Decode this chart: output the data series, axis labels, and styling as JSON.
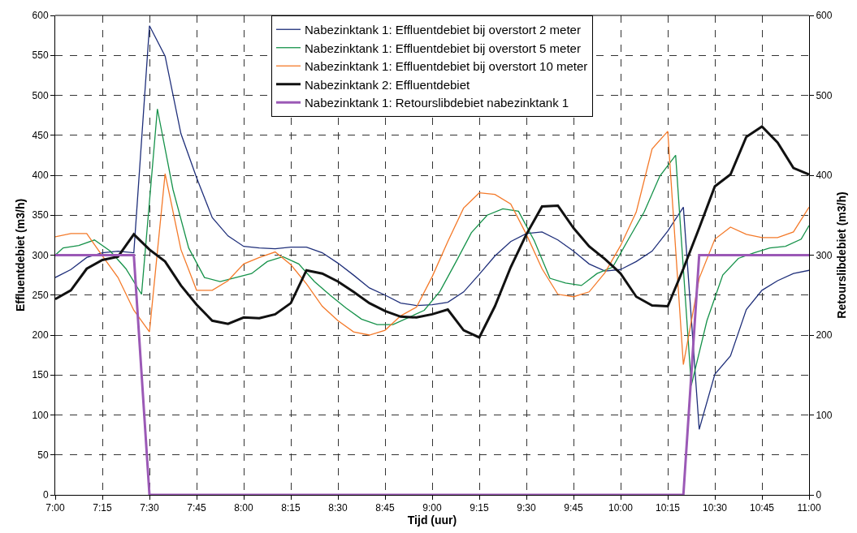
{
  "chart_data": {
    "type": "line",
    "xlabel": "Tijd (uur)",
    "ylabel": "Effluentdebiet (m3/h)",
    "y2label": "Retourslibdebiet (m3/h)",
    "x": [
      7,
      7.083,
      7.167,
      7.25,
      7.333,
      7.417,
      7.5,
      7.583,
      7.667,
      7.75,
      7.833,
      7.917,
      8,
      8.083,
      8.167,
      8.25,
      8.333,
      8.417,
      8.5,
      8.583,
      8.667,
      8.75,
      8.833,
      8.917,
      9,
      9.083,
      9.167,
      9.25,
      9.333,
      9.417,
      9.5,
      9.583,
      9.667,
      9.75,
      9.833,
      9.917,
      10,
      10.083,
      10.167,
      10.25,
      10.333,
      10.417,
      10.5,
      10.583,
      10.667,
      10.75,
      10.833,
      10.917,
      11
    ],
    "series": [
      {
        "name": "Nabezinktank 1: Effluentdebiet bij overstort 2 meter",
        "color": "#1f2f7a",
        "values": [
          272,
          282,
          297,
          303,
          305,
          303,
          587,
          549,
          452,
          397,
          347,
          324,
          311,
          309,
          308,
          310,
          310,
          303,
          290,
          275,
          259,
          250,
          240,
          237,
          238,
          241,
          254,
          276,
          299,
          317,
          327,
          329,
          319,
          305,
          289,
          280,
          282,
          292,
          305,
          330,
          360,
          82,
          151,
          174,
          232,
          256,
          268,
          277,
          281
        ]
      },
      {
        "name": "Nabezinktank 1: Effluentdebiet bij overstort 5 meter",
        "color": "#16924a",
        "x": [
          7,
          7.042,
          7.125,
          7.208,
          7.292,
          7.375,
          7.458,
          7.542,
          7.625,
          7.708,
          7.792,
          7.875,
          7.958,
          8.042,
          8.125,
          8.208,
          8.292,
          8.375,
          8.458,
          8.542,
          8.625,
          8.708,
          8.792,
          8.875,
          8.958,
          9.042,
          9.125,
          9.208,
          9.292,
          9.375,
          9.458,
          9.542,
          9.625,
          9.708,
          9.792,
          9.875,
          9.958,
          10.042,
          10.125,
          10.208,
          10.292,
          10.375,
          10.458,
          10.542,
          10.625,
          10.708,
          10.792,
          10.875,
          10.958,
          11
        ],
        "values": [
          300,
          309,
          312,
          319,
          305,
          283,
          251,
          483,
          382,
          309,
          272,
          267,
          272,
          277,
          292,
          298,
          289,
          267,
          250,
          234,
          220,
          213,
          213,
          222,
          231,
          255,
          291,
          328,
          350,
          358,
          355,
          318,
          271,
          265,
          262,
          277,
          285,
          320,
          354,
          399,
          425,
          137,
          218,
          275,
          296,
          303,
          309,
          311,
          320,
          337
        ]
      },
      {
        "name": "Nabezinktank 1: Effluentdebiet bij overstort 10 meter",
        "color": "#f47a2a",
        "values": [
          323,
          327,
          327,
          299,
          272,
          231,
          204,
          402,
          307,
          256,
          256,
          268,
          289,
          297,
          304,
          288,
          264,
          236,
          218,
          204,
          200,
          206,
          224,
          235,
          273,
          317,
          359,
          378,
          376,
          364,
          326,
          283,
          251,
          248,
          254,
          278,
          312,
          354,
          433,
          455,
          163,
          271,
          320,
          335,
          326,
          322,
          322,
          329,
          360
        ]
      },
      {
        "name": "Nabezinktank 2: Effluentdebiet",
        "color": "#111111",
        "values": [
          245,
          256,
          283,
          294,
          298,
          326,
          307,
          292,
          262,
          238,
          218,
          214,
          222,
          221,
          226,
          240,
          281,
          277,
          267,
          254,
          240,
          230,
          223,
          222,
          226,
          232,
          206,
          197,
          236,
          285,
          326,
          361,
          362,
          334,
          311,
          295,
          277,
          248,
          237,
          236,
          283,
          334,
          386,
          401,
          448,
          461,
          441,
          409,
          401
        ]
      },
      {
        "name": "Nabezinktank 1: Retourslibdebiet nabezinktank 1",
        "color": "#9b59b6",
        "axis": "y2",
        "x": [
          7,
          7.417,
          7.5,
          10.333,
          10.417,
          11
        ],
        "values": [
          300,
          300,
          0,
          0,
          300,
          300
        ]
      }
    ],
    "xlim": [
      7,
      11
    ],
    "xticks": [
      {
        "value": 7,
        "label": "7:00"
      },
      {
        "value": 7.25,
        "label": "7:15"
      },
      {
        "value": 7.5,
        "label": "7:30"
      },
      {
        "value": 7.75,
        "label": "7:45"
      },
      {
        "value": 8,
        "label": "8:00"
      },
      {
        "value": 8.25,
        "label": "8:15"
      },
      {
        "value": 8.5,
        "label": "8:30"
      },
      {
        "value": 8.75,
        "label": "8:45"
      },
      {
        "value": 9,
        "label": "9:00"
      },
      {
        "value": 9.25,
        "label": "9:15"
      },
      {
        "value": 9.5,
        "label": "9:30"
      },
      {
        "value": 9.75,
        "label": "9:45"
      },
      {
        "value": 10,
        "label": "10:00"
      },
      {
        "value": 10.25,
        "label": "10:15"
      },
      {
        "value": 10.5,
        "label": "10:30"
      },
      {
        "value": 10.75,
        "label": "10:45"
      },
      {
        "value": 11,
        "label": "11:00"
      }
    ],
    "ylim": [
      0,
      600
    ],
    "yticks": [
      0,
      50,
      100,
      150,
      200,
      250,
      300,
      350,
      400,
      450,
      500,
      550,
      600
    ],
    "y2lim": [
      0,
      600
    ],
    "y2ticks": [
      0,
      100,
      200,
      300,
      400,
      500,
      600
    ],
    "grid": true,
    "legend": "top",
    "marker": "none",
    "line_style": "solid"
  }
}
